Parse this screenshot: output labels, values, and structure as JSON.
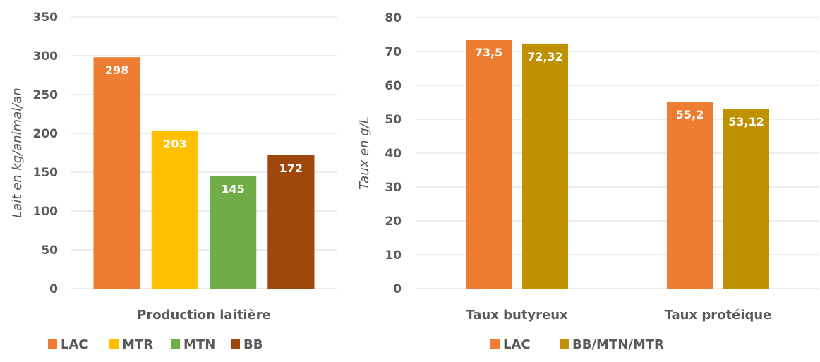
{
  "chart_data": [
    {
      "type": "bar",
      "categories": [
        "Production laitière"
      ],
      "series": [
        {
          "name": "LAC",
          "values": [
            298
          ],
          "color": "#ED7D31"
        },
        {
          "name": "MTR",
          "values": [
            203
          ],
          "color": "#FFC000"
        },
        {
          "name": "MTN",
          "values": [
            145
          ],
          "color": "#70AD47"
        },
        {
          "name": "BB",
          "values": [
            172
          ],
          "color": "#9E480E"
        }
      ],
      "data_labels": [
        [
          "298"
        ],
        [
          "203"
        ],
        [
          "145"
        ],
        [
          "172"
        ]
      ],
      "ylabel": "Lait en kg/animal/an",
      "ylim": [
        0,
        350
      ],
      "yticks": [
        0,
        50,
        100,
        150,
        200,
        250,
        300,
        350
      ],
      "ytick_labels": [
        "0",
        "50",
        "100",
        "150",
        "200",
        "250",
        "300",
        "350"
      ],
      "grid": true,
      "legend": "bottom"
    },
    {
      "type": "bar",
      "categories": [
        "Taux butyreux",
        "Taux protéique"
      ],
      "series": [
        {
          "name": "LAC",
          "values": [
            73.5,
            55.2
          ],
          "color": "#ED7D31"
        },
        {
          "name": "BB/MTN/MTR",
          "values": [
            72.32,
            53.12
          ],
          "color": "#BF9000"
        }
      ],
      "data_labels": [
        [
          "73,5",
          "55,2"
        ],
        [
          "72,32",
          "53,12"
        ]
      ],
      "ylabel": "Taux en g/L",
      "ylim": [
        0,
        80
      ],
      "yticks": [
        0,
        10,
        20,
        30,
        40,
        50,
        60,
        70,
        80
      ],
      "ytick_labels": [
        "0",
        "10",
        "20",
        "30",
        "40",
        "50",
        "60",
        "70",
        "80"
      ],
      "grid": true,
      "legend": "bottom"
    }
  ]
}
